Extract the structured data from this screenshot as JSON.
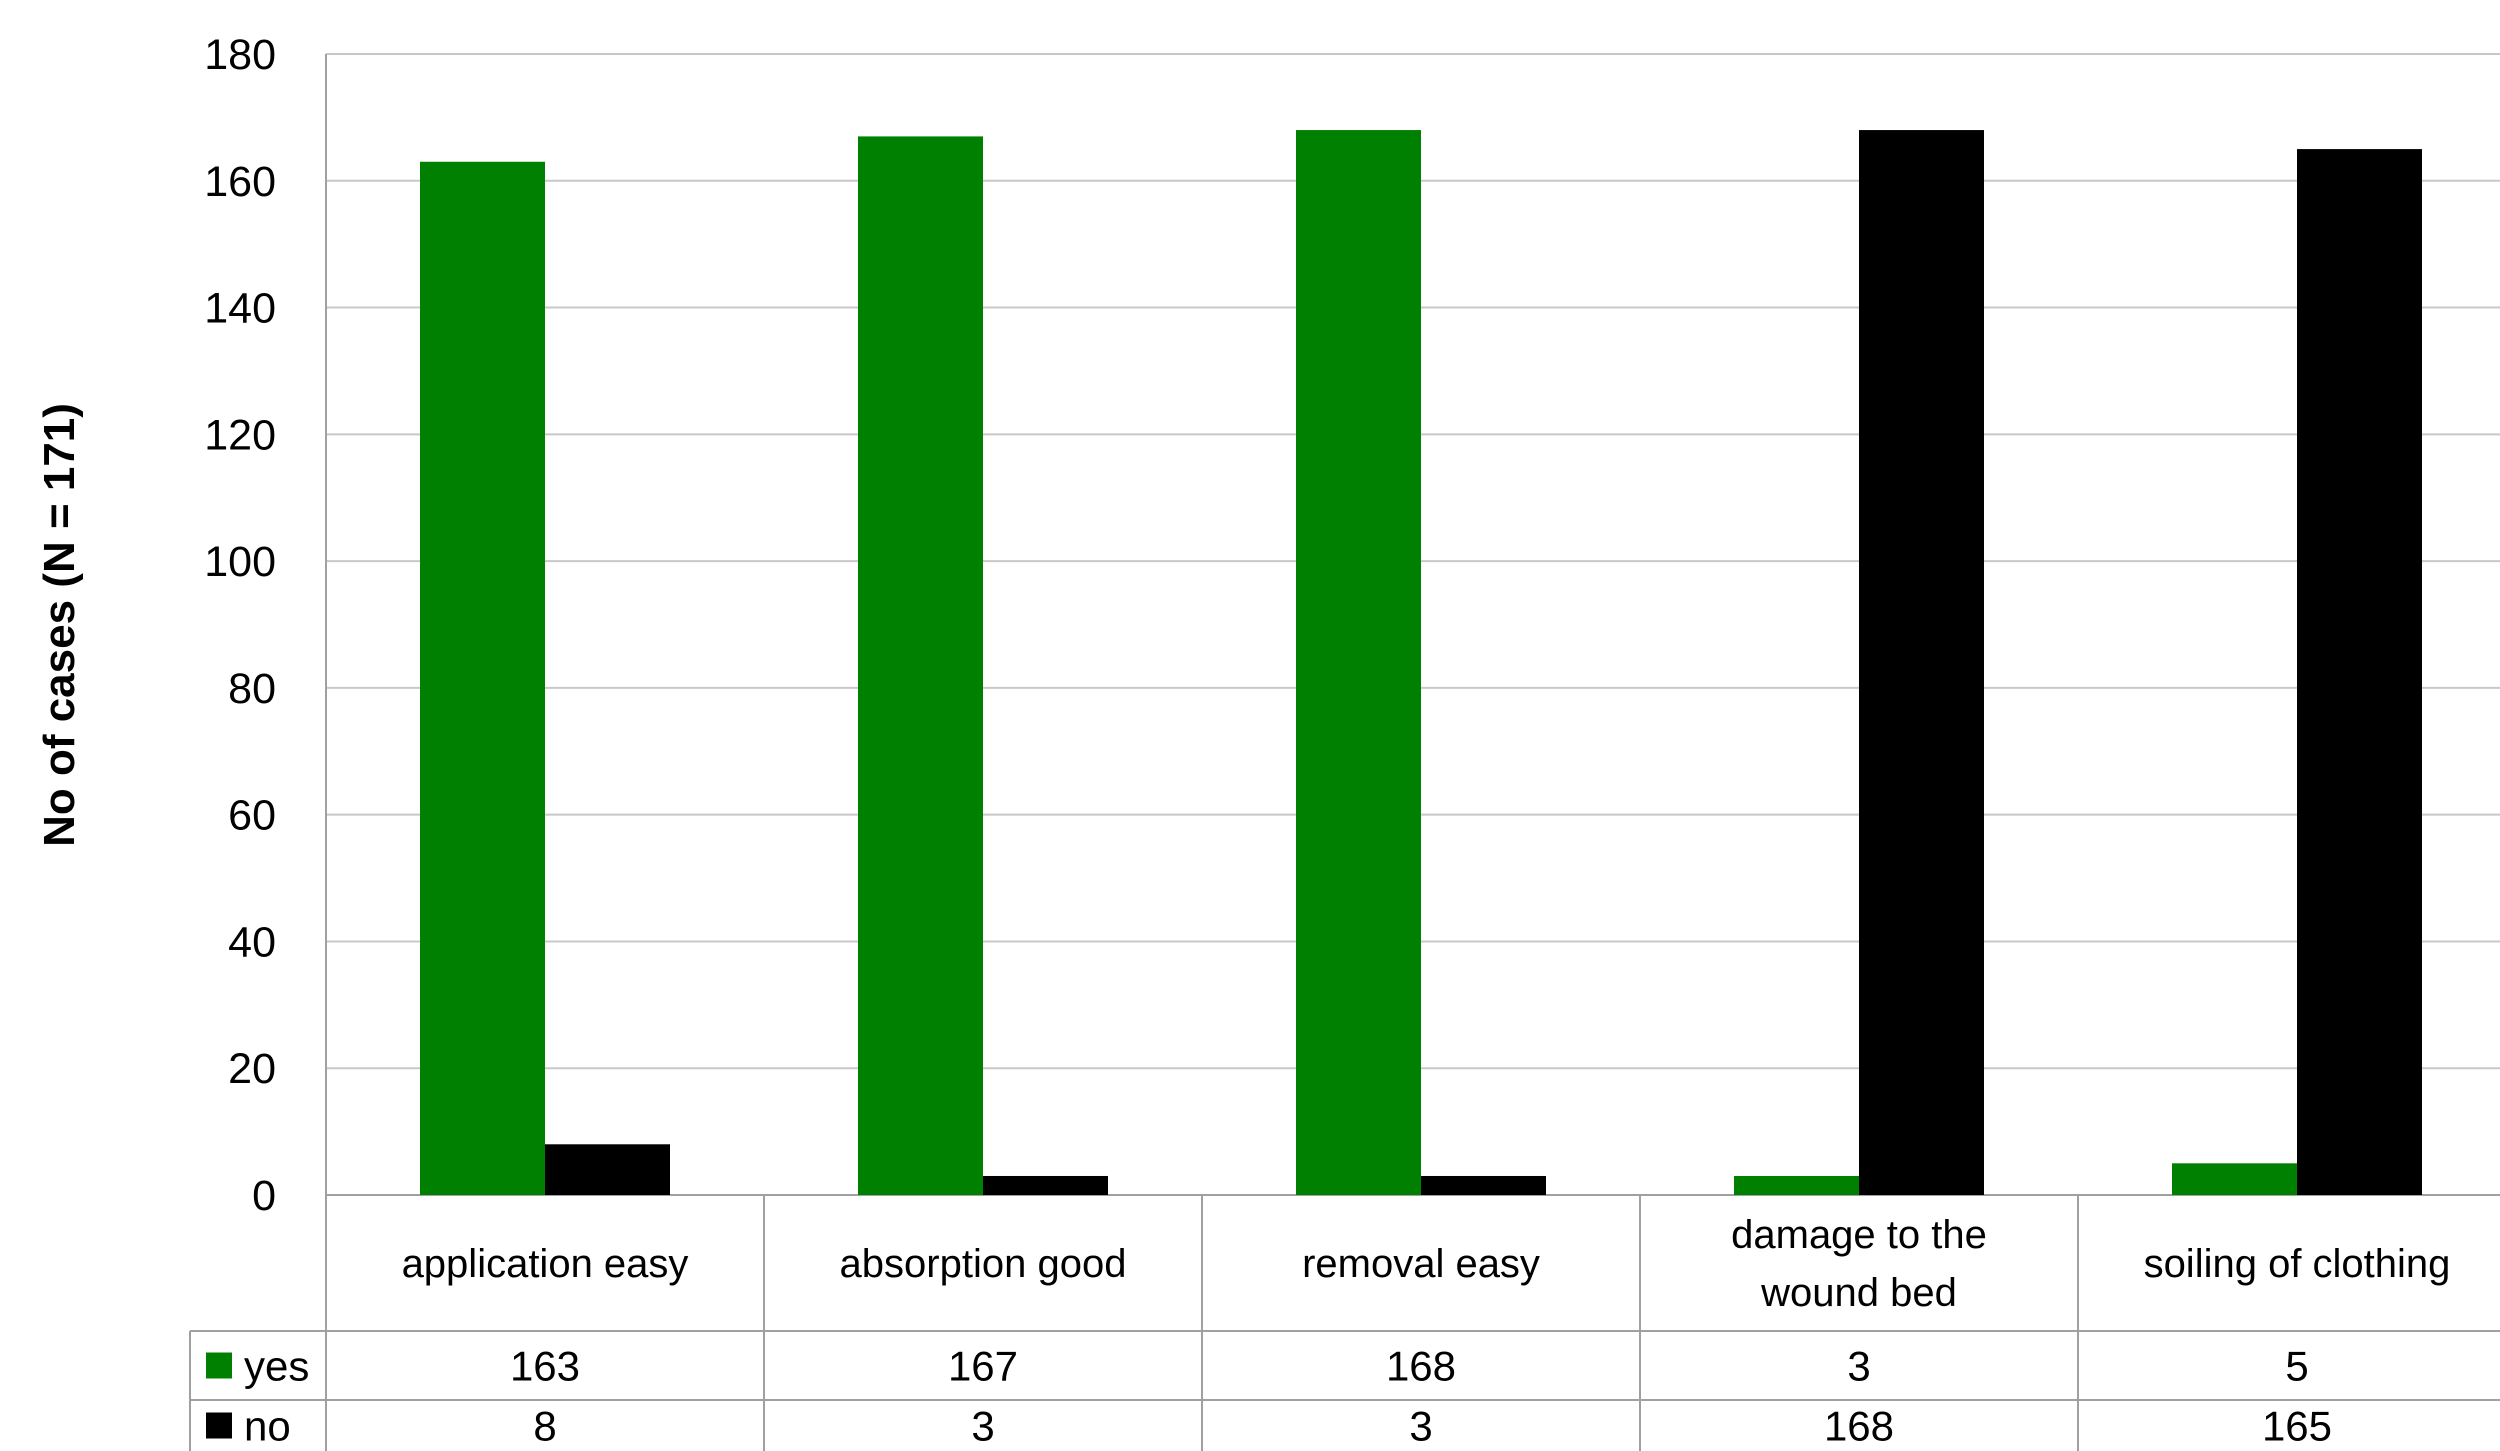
{
  "chart_data": {
    "type": "bar",
    "categories": [
      [
        "application easy"
      ],
      [
        "absorption good"
      ],
      [
        "removal easy"
      ],
      [
        "damage to the",
        "wound bed"
      ],
      [
        "soiling of clothing"
      ]
    ],
    "series": [
      {
        "name": "yes",
        "color": "#008000",
        "values": [
          163,
          167,
          168,
          3,
          5
        ]
      },
      {
        "name": "no",
        "color": "#000000",
        "values": [
          8,
          3,
          3,
          168,
          165
        ]
      }
    ],
    "ylabel": "No of cases (N = 171)",
    "ylim": [
      0,
      180
    ],
    "yticks": [
      0,
      20,
      40,
      60,
      80,
      100,
      120,
      140,
      160,
      180
    ],
    "grid": true,
    "data_table": true,
    "colors": {
      "grid": "#c8c8c8",
      "border": "#a0a0a0"
    }
  }
}
